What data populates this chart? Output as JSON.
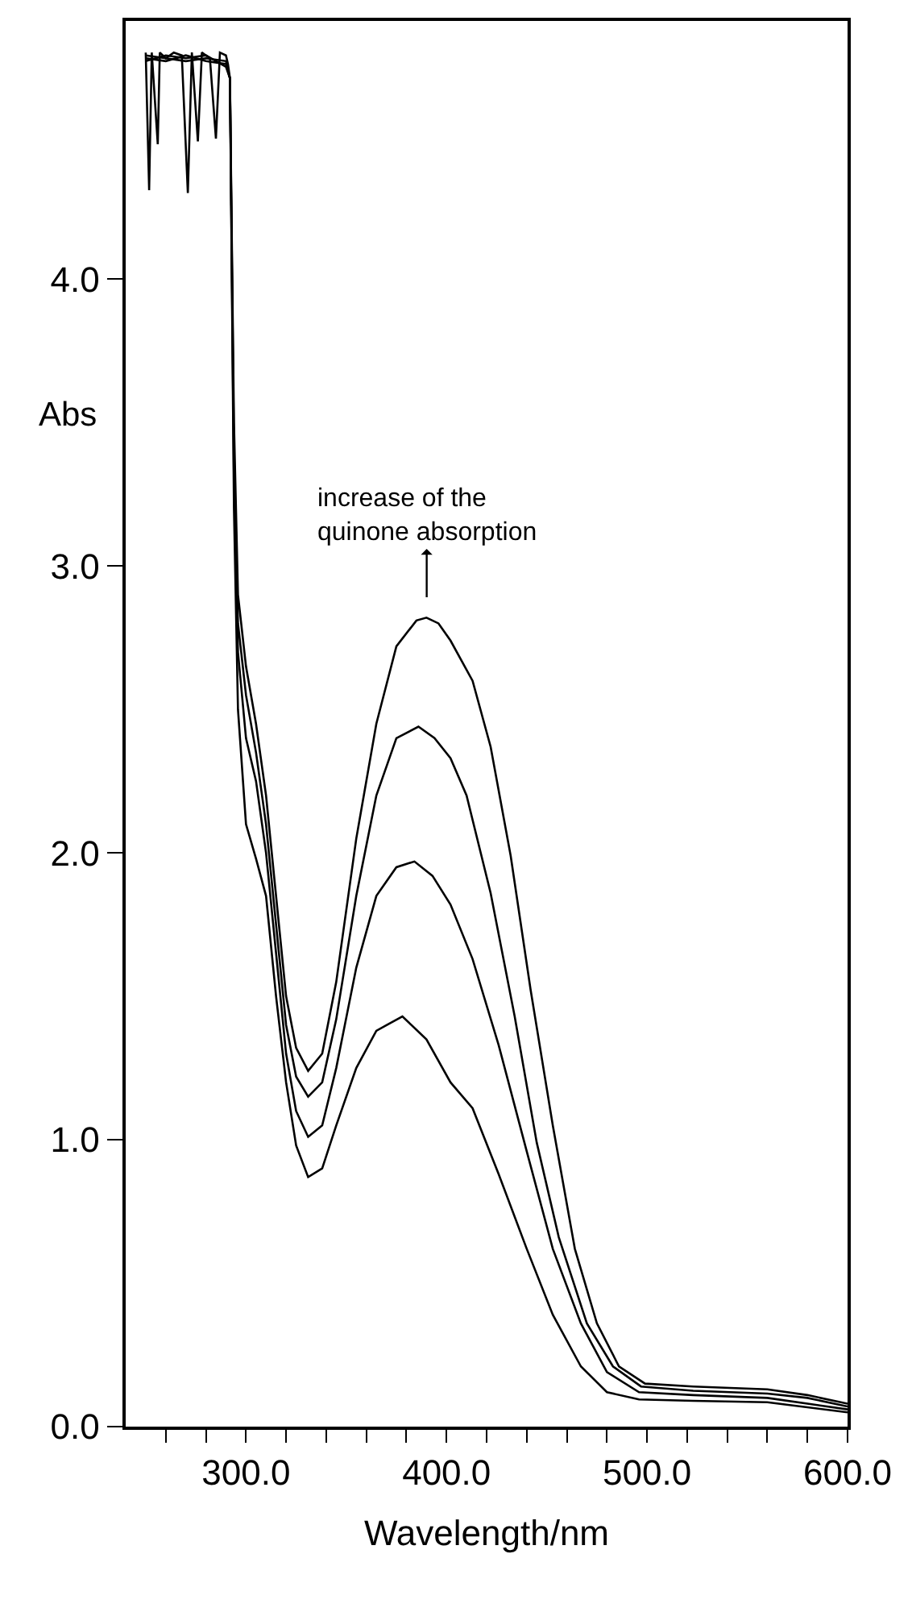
{
  "chart_data": {
    "type": "line",
    "xlabel": "Wavelength/nm",
    "ylabel": "Abs",
    "xlim": [
      240,
      600
    ],
    "ylim": [
      0,
      4.9
    ],
    "xticks": [
      {
        "value": 260,
        "label": null
      },
      {
        "value": 280,
        "label": null
      },
      {
        "value": 300,
        "label": "300.0"
      },
      {
        "value": 320,
        "label": null
      },
      {
        "value": 340,
        "label": null
      },
      {
        "value": 360,
        "label": null
      },
      {
        "value": 380,
        "label": null
      },
      {
        "value": 400,
        "label": "400.0"
      },
      {
        "value": 420,
        "label": null
      },
      {
        "value": 440,
        "label": null
      },
      {
        "value": 460,
        "label": null
      },
      {
        "value": 480,
        "label": null
      },
      {
        "value": 500,
        "label": "500.0"
      },
      {
        "value": 520,
        "label": null
      },
      {
        "value": 540,
        "label": null
      },
      {
        "value": 560,
        "label": null
      },
      {
        "value": 580,
        "label": null
      },
      {
        "value": 600,
        "label": "600.0"
      }
    ],
    "yticks": [
      {
        "value": 0,
        "label": "0.0"
      },
      {
        "value": 1,
        "label": "1.0"
      },
      {
        "value": 2,
        "label": "2.0"
      },
      {
        "value": 3,
        "label": "3.0"
      },
      {
        "value": 4,
        "label": "4.0"
      }
    ],
    "marker": "none",
    "line_style": "solid",
    "annotations": [
      "increase of the\nquinone absorption"
    ],
    "series": [
      {
        "color": "#000000",
        "x": [
          250,
          251.7,
          253,
          256,
          257,
          260,
          264,
          268,
          271,
          273,
          276,
          278,
          282,
          285,
          287,
          290,
          291,
          292,
          294,
          296,
          300,
          305,
          310,
          315,
          320,
          325,
          331,
          338,
          345,
          355,
          365,
          375,
          385,
          390,
          396,
          402,
          413,
          422,
          432,
          442,
          453,
          464,
          475,
          486,
          499,
          523,
          560,
          580,
          600
        ],
        "values": [
          4.79,
          4.31,
          4.79,
          4.47,
          4.79,
          4.77,
          4.79,
          4.78,
          4.3,
          4.79,
          4.48,
          4.79,
          4.77,
          4.49,
          4.79,
          4.78,
          4.75,
          4.7,
          3.5,
          2.9,
          2.65,
          2.45,
          2.2,
          1.85,
          1.5,
          1.32,
          1.24,
          1.3,
          1.55,
          2.05,
          2.45,
          2.72,
          2.81,
          2.82,
          2.8,
          2.74,
          2.6,
          2.37,
          1.99,
          1.52,
          1.05,
          0.62,
          0.36,
          0.21,
          0.15,
          0.14,
          0.13,
          0.11,
          0.08
        ]
      },
      {
        "color": "#000000",
        "x": [
          250,
          260,
          270,
          280,
          290,
          292,
          294,
          296,
          300,
          305,
          310,
          315,
          320,
          325,
          331,
          338,
          345,
          355,
          365,
          375,
          386,
          394,
          402,
          410,
          422,
          434,
          445,
          456,
          470,
          483,
          497,
          523,
          560,
          580,
          600
        ],
        "values": [
          4.77,
          4.76,
          4.78,
          4.76,
          4.75,
          4.7,
          3.4,
          2.8,
          2.55,
          2.35,
          2.1,
          1.75,
          1.4,
          1.22,
          1.15,
          1.2,
          1.42,
          1.85,
          2.2,
          2.4,
          2.44,
          2.4,
          2.33,
          2.2,
          1.86,
          1.43,
          0.99,
          0.66,
          0.36,
          0.21,
          0.14,
          0.125,
          0.115,
          0.1,
          0.07
        ]
      },
      {
        "color": "#000000",
        "x": [
          250,
          260,
          270,
          280,
          290,
          292,
          294,
          296,
          300,
          305,
          310,
          315,
          320,
          325,
          331,
          338,
          345,
          355,
          365,
          375,
          384,
          393,
          402,
          413,
          426,
          440,
          453,
          467,
          480,
          496,
          523,
          560,
          600
        ],
        "values": [
          4.76,
          4.78,
          4.77,
          4.78,
          4.74,
          4.7,
          3.3,
          2.7,
          2.4,
          2.25,
          2.0,
          1.65,
          1.3,
          1.1,
          1.01,
          1.05,
          1.25,
          1.6,
          1.85,
          1.95,
          1.97,
          1.92,
          1.82,
          1.63,
          1.33,
          0.96,
          0.62,
          0.36,
          0.19,
          0.12,
          0.11,
          0.1,
          0.06
        ]
      },
      {
        "color": "#000000",
        "x": [
          250,
          260,
          270,
          280,
          290,
          292,
          294,
          296,
          300,
          305,
          310,
          315,
          320,
          325,
          331,
          338,
          345,
          355,
          365,
          378,
          390,
          402,
          413,
          426,
          440,
          453,
          467,
          480,
          496,
          523,
          560,
          600
        ],
        "values": [
          4.78,
          4.77,
          4.76,
          4.77,
          4.76,
          4.7,
          3.2,
          2.5,
          2.1,
          1.98,
          1.85,
          1.5,
          1.2,
          0.98,
          0.87,
          0.9,
          1.05,
          1.25,
          1.38,
          1.43,
          1.35,
          1.2,
          1.11,
          0.88,
          0.62,
          0.39,
          0.21,
          0.12,
          0.095,
          0.09,
          0.085,
          0.05
        ]
      }
    ]
  }
}
